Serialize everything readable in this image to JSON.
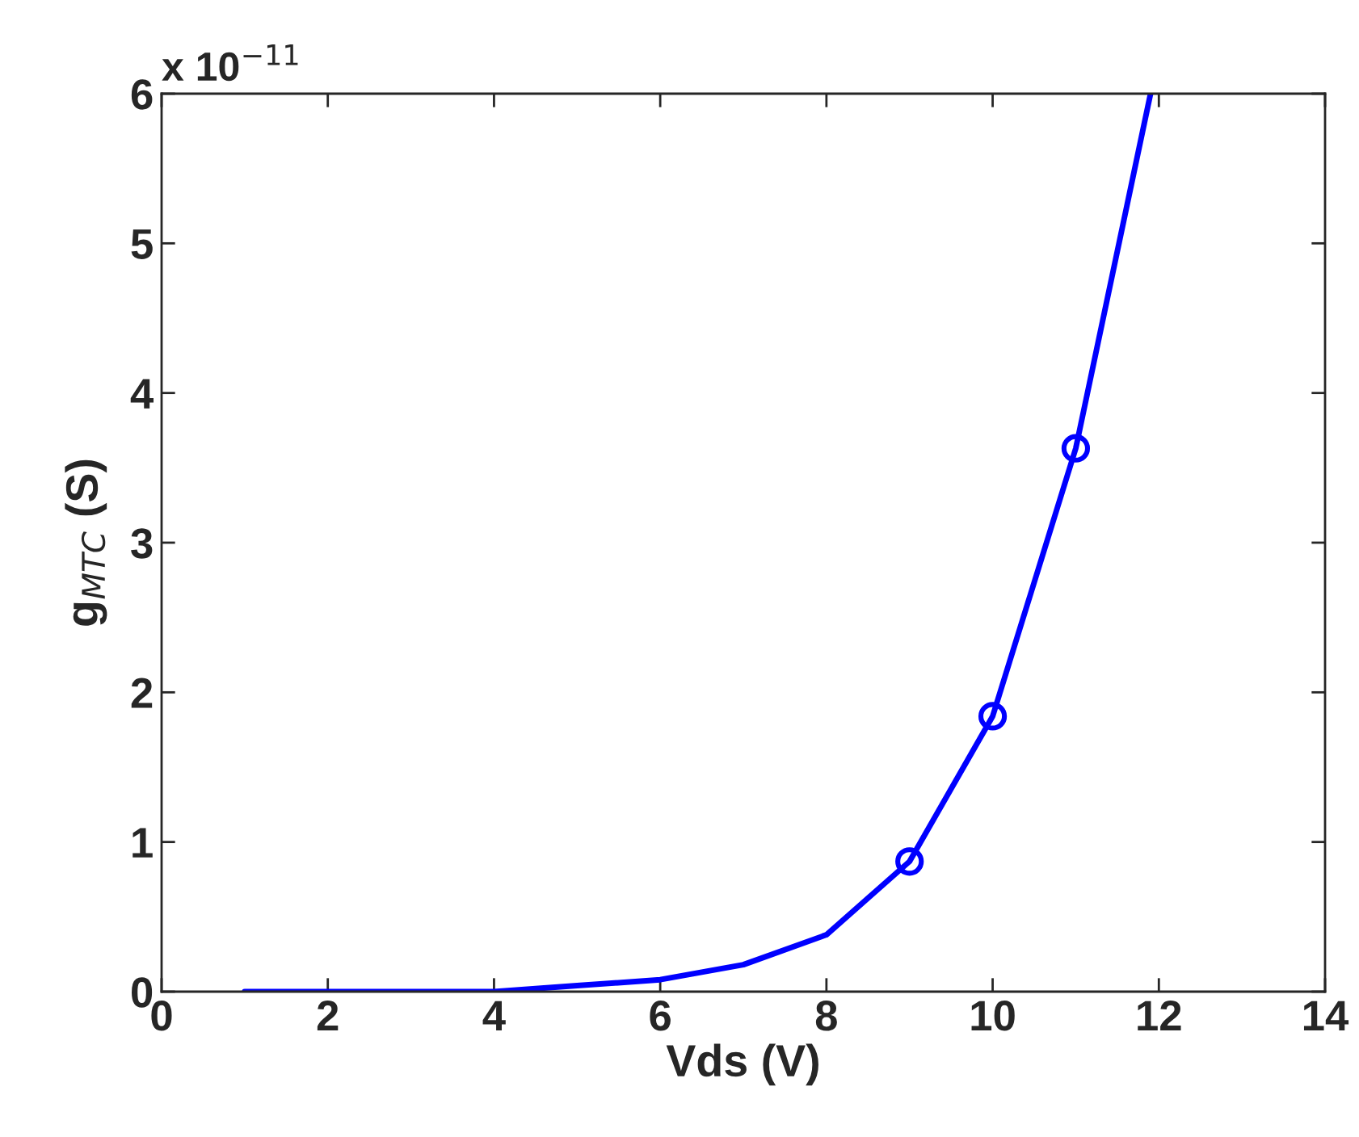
{
  "chart_data": {
    "type": "line",
    "xlabel": "Vds (V)",
    "ylabel": "g$_{MTC}$ (S)",
    "annotations": [
      "x 10$^{−11}$"
    ],
    "series": [
      {
        "color": "#0000ff",
        "marker": "none",
        "x": [
          1,
          2,
          3,
          4,
          5,
          6,
          7,
          8,
          9,
          10,
          11,
          11.9
        ],
        "values": [
          0,
          0,
          0,
          0,
          0.04,
          0.08,
          0.18,
          0.38,
          0.87,
          1.84,
          3.63,
          6.0
        ]
      },
      {
        "type": "scatter",
        "color": "#0000ff",
        "marker": "circle",
        "x": [
          9,
          10,
          11
        ],
        "values": [
          0.87,
          1.84,
          3.63
        ]
      }
    ],
    "xlim": [
      0,
      14
    ],
    "xticks": [
      0,
      2,
      4,
      6,
      8,
      10,
      12,
      14
    ],
    "ylim": [
      0,
      6
    ],
    "yticks": [
      0,
      1,
      2,
      3,
      4,
      5,
      6
    ],
    "grid": false
  }
}
